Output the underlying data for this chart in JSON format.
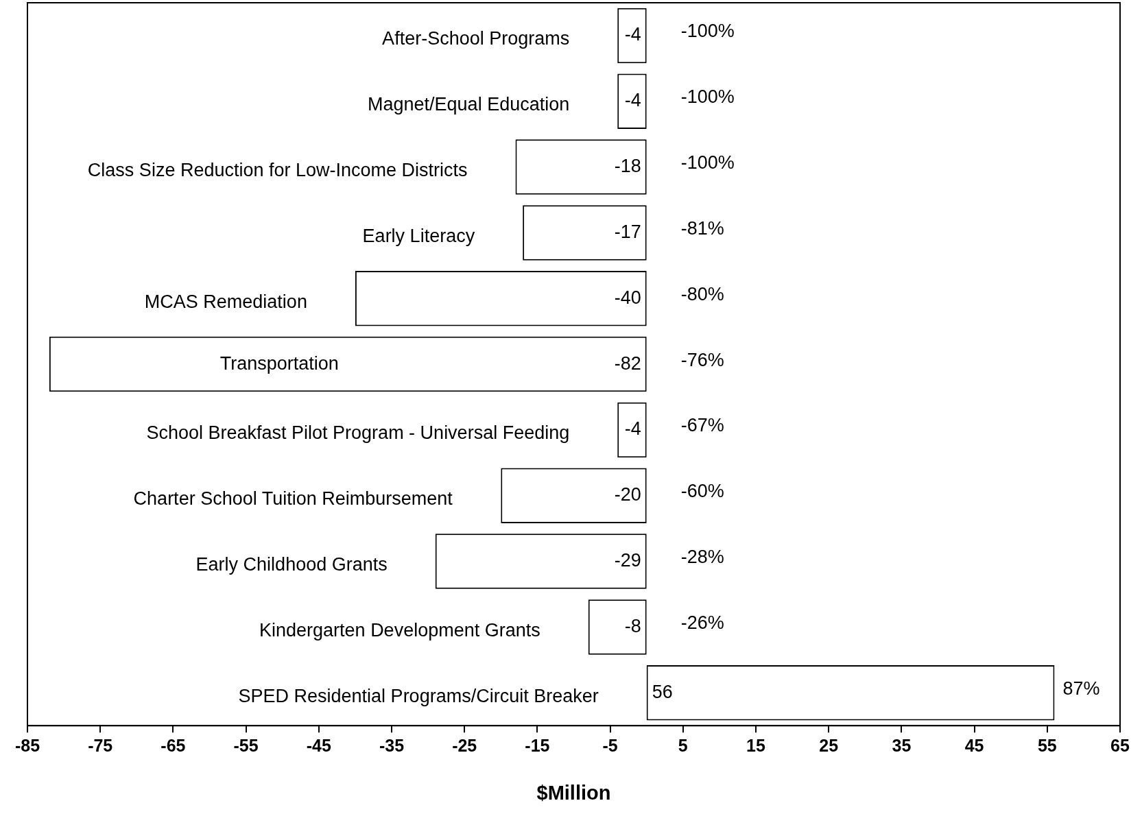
{
  "chart_data": {
    "type": "bar",
    "orientation": "horizontal",
    "xlabel": "$Million",
    "categories": [
      "After-School Programs",
      "Magnet/Equal Education",
      "Class Size Reduction for Low-Income Districts",
      "Early Literacy",
      "MCAS Remediation",
      "Transportation",
      "School Breakfast Pilot Program - Universal Feeding",
      "Charter School Tuition Reimbursement",
      "Early Childhood Grants",
      "Kindergarten Development Grants",
      "SPED Residential Programs/Circuit Breaker"
    ],
    "values": [
      -4,
      -4,
      -18,
      -17,
      -40,
      -82,
      -4,
      -20,
      -29,
      -8,
      56
    ],
    "color": "#ffffff",
    "data_labels": true,
    "annotations": [
      "-100%",
      "-100%",
      "-100%",
      "-81%",
      "-80%",
      "-76%",
      "-67%",
      "-60%",
      "-28%",
      "-26%",
      "87%"
    ],
    "xlim": [
      -85,
      65
    ],
    "xticks": [
      -85,
      -75,
      -65,
      -55,
      -45,
      -35,
      -25,
      -15,
      -5,
      5,
      15,
      25,
      35,
      45,
      55,
      65
    ],
    "grid": false,
    "legend": false,
    "tick_labels": "x"
  }
}
